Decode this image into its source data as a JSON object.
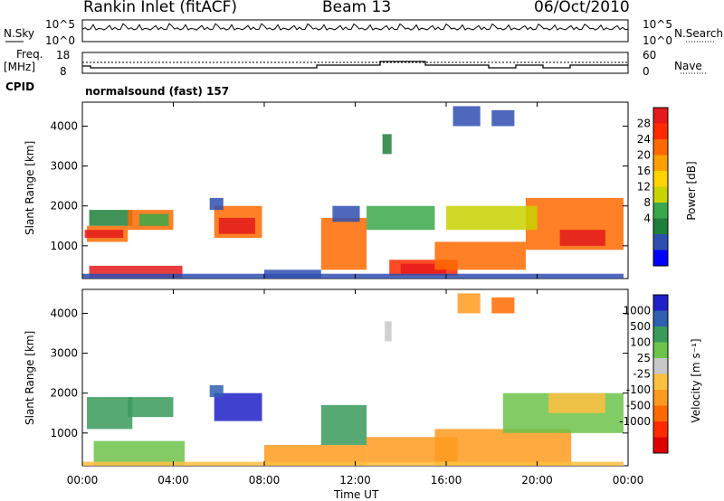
{
  "header": {
    "station": "Rankin Inlet (fitACF)",
    "beam": "Beam 13",
    "date": "06/Oct/2010"
  },
  "nsky_panel": {
    "left_label": "N.Sky",
    "right_label": "N.Search",
    "left_ticks": [
      "10^5",
      "10^0"
    ],
    "right_ticks": [
      "10^5",
      "10^0"
    ]
  },
  "freq_panel": {
    "left_label_line1": "Freq.",
    "left_label_line2": "[MHz]",
    "right_label": "Nave",
    "left_ticks": [
      "18",
      "8"
    ],
    "right_ticks": [
      "60",
      "0"
    ]
  },
  "cpid": {
    "label": "CPID",
    "program": "normalsound (fast) 157"
  },
  "chart_data": [
    {
      "type": "heatmap",
      "name": "Power",
      "ylabel": "Slant Range [km]",
      "ylim": [
        180,
        4600
      ],
      "y_ticks": [
        "1000",
        "2000",
        "3000",
        "4000"
      ],
      "y_tick_values": [
        1000,
        2000,
        3000,
        4000
      ],
      "colorbar_label": "Power [dB]",
      "colorbar_ticks": [
        "28",
        "24",
        "20",
        "16",
        "12",
        "8",
        "4"
      ],
      "colorbar_colors": [
        "#e41a1c",
        "#ff2a00",
        "#ff6a00",
        "#ffa000",
        "#ffd400",
        "#c8d400",
        "#3aa84a",
        "#1e7f3a",
        "#2f4fb0",
        "#0000ff"
      ]
    },
    {
      "type": "heatmap",
      "name": "Velocity",
      "ylabel": "Slant Range [km]",
      "ylim": [
        180,
        4600
      ],
      "y_ticks": [
        "1000",
        "2000",
        "3000",
        "4000"
      ],
      "y_tick_values": [
        1000,
        2000,
        3000,
        4000
      ],
      "colorbar_label": "Velocity [m s⁻¹]",
      "colorbar_ticks": [
        "1000",
        "500",
        "100",
        "25",
        "-25",
        "-100",
        "-500",
        "-1000"
      ],
      "colorbar_colors": [
        "#2020c8",
        "#3060b0",
        "#3a9a5a",
        "#6cc24a",
        "#c8c8c8",
        "#ffc040",
        "#ff9a20",
        "#ff6a00",
        "#ff2a00",
        "#e00000"
      ]
    }
  ],
  "x_axis": {
    "label": "Time UT",
    "ticks": [
      "00:00",
      "04:00",
      "08:00",
      "12:00",
      "16:00",
      "20:00",
      "00:00"
    ],
    "tick_hours": [
      0,
      4,
      8,
      12,
      16,
      20,
      24
    ]
  }
}
